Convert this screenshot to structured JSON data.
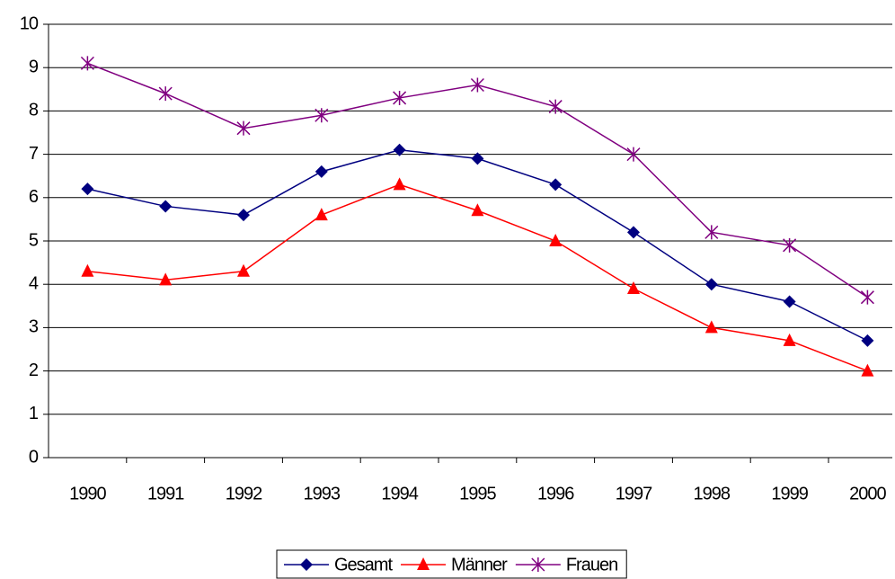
{
  "chart_data": {
    "type": "line",
    "categories": [
      "1990",
      "1991",
      "1992",
      "1993",
      "1994",
      "1995",
      "1996",
      "1997",
      "1998",
      "1999",
      "2000"
    ],
    "series": [
      {
        "name": "Gesamt",
        "color": "#000080",
        "marker": "diamond",
        "values": [
          6.2,
          5.8,
          5.6,
          6.6,
          7.1,
          6.9,
          6.3,
          5.2,
          4.0,
          3.6,
          2.7
        ]
      },
      {
        "name": "Männer",
        "color": "#ff0000",
        "marker": "triangle",
        "values": [
          4.3,
          4.1,
          4.3,
          5.6,
          6.3,
          5.7,
          5.0,
          3.9,
          3.0,
          2.7,
          2.0
        ]
      },
      {
        "name": "Frauen",
        "color": "#800080",
        "marker": "star",
        "values": [
          9.1,
          8.4,
          7.6,
          7.9,
          8.3,
          8.6,
          8.1,
          7.0,
          5.2,
          4.9,
          3.7
        ]
      }
    ],
    "ylim": [
      0,
      10
    ],
    "yticks": [
      0,
      1,
      2,
      3,
      4,
      5,
      6,
      7,
      8,
      9,
      10
    ],
    "grid": true,
    "legend": "bottom"
  }
}
